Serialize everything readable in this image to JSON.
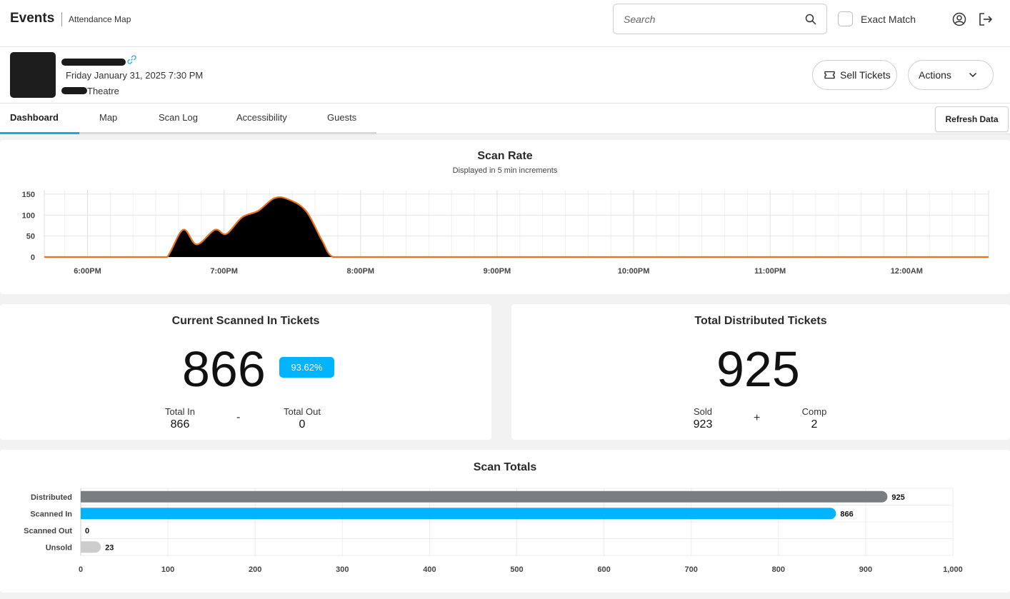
{
  "header": {
    "app_title": "Events",
    "subtitle": "Attendance Map",
    "search_placeholder": "Search",
    "exact_match_label": "Exact Match"
  },
  "event": {
    "date": "Friday January 31, 2025 7:30 PM",
    "venue_suffix": "Theatre",
    "sell_tickets_label": "Sell Tickets",
    "actions_label": "Actions"
  },
  "tabs": [
    {
      "label": "Dashboard",
      "active": true
    },
    {
      "label": "Map",
      "active": false
    },
    {
      "label": "Scan Log",
      "active": false
    },
    {
      "label": "Accessibility",
      "active": false
    },
    {
      "label": "Guests",
      "active": false
    }
  ],
  "refresh_label": "Refresh Data",
  "scan_rate": {
    "title": "Scan Rate",
    "subtitle": "Displayed in 5 min increments"
  },
  "scanned_in": {
    "title": "Current Scanned In Tickets",
    "value": "866",
    "percent": "93.62%",
    "total_in_label": "Total In",
    "total_in_value": "866",
    "operator": "-",
    "total_out_label": "Total Out",
    "total_out_value": "0"
  },
  "distributed": {
    "title": "Total Distributed Tickets",
    "value": "925",
    "sold_label": "Sold",
    "sold_value": "923",
    "operator": "+",
    "comp_label": "Comp",
    "comp_value": "2"
  },
  "scan_totals": {
    "title": "Scan Totals"
  },
  "colors": {
    "accent": "#1aa7e8",
    "badge": "#00b4ff",
    "line": "#e8731c",
    "area": "#000000",
    "bar_distributed": "#7a7e83",
    "bar_scanned_in": "#00b4ff",
    "bar_unsold": "#cccccc"
  },
  "chart_data": [
    {
      "type": "area",
      "title": "Scan Rate",
      "subtitle": "Displayed in 5 min increments",
      "x_ticks": [
        "6:00PM",
        "7:00PM",
        "8:00PM",
        "9:00PM",
        "10:00PM",
        "11:00PM",
        "12:00AM"
      ],
      "y_ticks": [
        0,
        50,
        100,
        150
      ],
      "ylim": [
        0,
        160
      ],
      "x_unit": "time",
      "points": [
        [
          "5:41PM",
          0
        ],
        [
          "6:00PM",
          0
        ],
        [
          "6:30PM",
          0
        ],
        [
          "6:35PM",
          0
        ],
        [
          "6:42PM",
          65
        ],
        [
          "6:48PM",
          30
        ],
        [
          "6:56PM",
          65
        ],
        [
          "7:01PM",
          55
        ],
        [
          "7:08PM",
          95
        ],
        [
          "7:15PM",
          110
        ],
        [
          "7:22PM",
          140
        ],
        [
          "7:28PM",
          138
        ],
        [
          "7:36PM",
          110
        ],
        [
          "7:43PM",
          40
        ],
        [
          "7:48PM",
          0
        ],
        [
          "8:00PM",
          0
        ],
        [
          "9:00PM",
          0
        ],
        [
          "10:00PM",
          0
        ],
        [
          "11:00PM",
          0
        ],
        [
          "12:00AM",
          0
        ],
        [
          "12:36AM",
          0
        ]
      ],
      "grid": true
    },
    {
      "type": "bar",
      "orientation": "horizontal",
      "title": "Scan Totals",
      "categories": [
        "Distributed",
        "Scanned In",
        "Scanned Out",
        "Unsold"
      ],
      "values": [
        925,
        866,
        0,
        23
      ],
      "x_ticks": [
        "0",
        "100",
        "200",
        "300",
        "400",
        "500",
        "600",
        "700",
        "800",
        "900",
        "1,000"
      ],
      "xlim": [
        0,
        1000
      ],
      "grid": true
    }
  ]
}
